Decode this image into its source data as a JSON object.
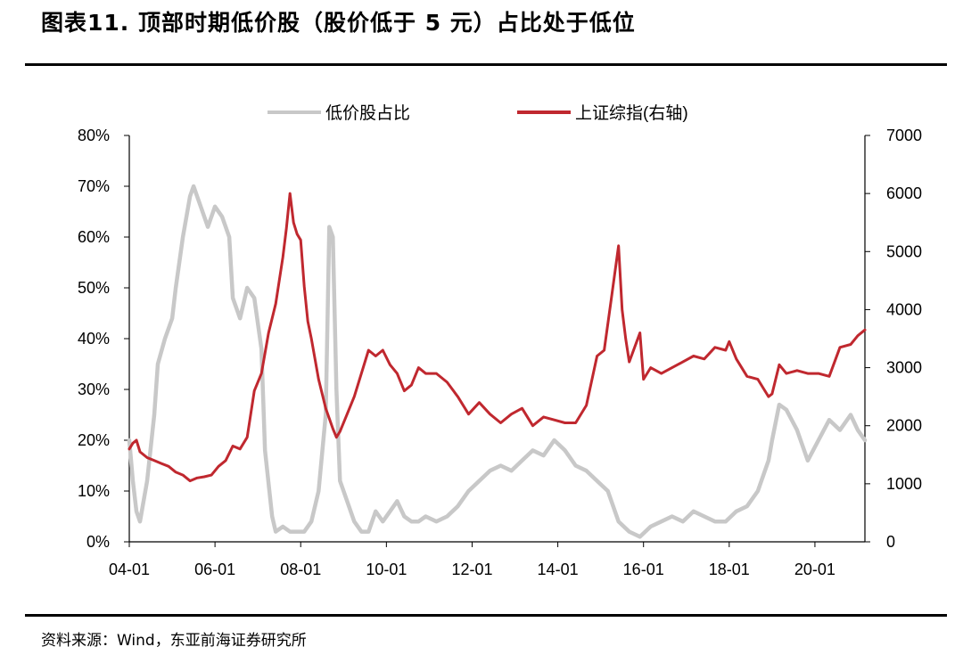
{
  "figure": {
    "title": "图表11. 顶部时期低价股（股价低于 5 元）占比处于低位",
    "source": "资料来源：Wind，东亚前海证券研究所"
  },
  "colors": {
    "low_price_share": "#c8c8c8",
    "sse_index": "#c0282f",
    "axis": "#000000"
  },
  "chart_data": {
    "type": "line",
    "title": "",
    "legend": {
      "position": "top",
      "entries": [
        "低价股占比",
        "上证综指(右轴)"
      ]
    },
    "grid": false,
    "x_axis": {
      "label": "",
      "range": [
        "2004-01",
        "2021-03"
      ],
      "tick_labels": [
        "04-01",
        "06-01",
        "08-01",
        "10-01",
        "12-01",
        "14-01",
        "16-01",
        "18-01",
        "20-01"
      ],
      "tick_values": [
        "2004-01",
        "2006-01",
        "2008-01",
        "2010-01",
        "2012-01",
        "2014-01",
        "2016-01",
        "2018-01",
        "2020-01"
      ]
    },
    "y_left": {
      "label": "",
      "range": [
        0,
        80
      ],
      "unit": "%",
      "tick_labels": [
        "0%",
        "10%",
        "20%",
        "30%",
        "40%",
        "50%",
        "60%",
        "70%",
        "80%"
      ]
    },
    "y_right": {
      "label": "",
      "range": [
        0,
        7000
      ],
      "tick_labels": [
        "0",
        "1000",
        "2000",
        "3000",
        "4000",
        "5000",
        "6000",
        "7000"
      ]
    },
    "series": [
      {
        "name": "低价股占比",
        "axis": "left",
        "unit": "%",
        "x": [
          "2004-01",
          "2004-02",
          "2004-03",
          "2004-04",
          "2004-06",
          "2004-08",
          "2004-09",
          "2004-11",
          "2005-01",
          "2005-02",
          "2005-04",
          "2005-06",
          "2005-07",
          "2005-09",
          "2005-11",
          "2006-01",
          "2006-03",
          "2006-05",
          "2006-06",
          "2006-08",
          "2006-10",
          "2006-12",
          "2007-02",
          "2007-03",
          "2007-05",
          "2007-06",
          "2007-08",
          "2007-10",
          "2007-12",
          "2008-02",
          "2008-04",
          "2008-06",
          "2008-08",
          "2008-09",
          "2008-10",
          "2008-11",
          "2008-12",
          "2009-02",
          "2009-04",
          "2009-06",
          "2009-08",
          "2009-10",
          "2009-12",
          "2010-02",
          "2010-04",
          "2010-06",
          "2010-08",
          "2010-10",
          "2010-12",
          "2011-03",
          "2011-06",
          "2011-09",
          "2011-12",
          "2012-03",
          "2012-06",
          "2012-09",
          "2012-12",
          "2013-03",
          "2013-06",
          "2013-09",
          "2013-12",
          "2014-03",
          "2014-06",
          "2014-09",
          "2014-12",
          "2015-03",
          "2015-06",
          "2015-09",
          "2015-12",
          "2016-03",
          "2016-06",
          "2016-09",
          "2016-12",
          "2017-03",
          "2017-06",
          "2017-09",
          "2017-12",
          "2018-03",
          "2018-06",
          "2018-09",
          "2018-12",
          "2019-01",
          "2019-03",
          "2019-05",
          "2019-08",
          "2019-11",
          "2020-02",
          "2020-05",
          "2020-08",
          "2020-11",
          "2021-01",
          "2021-03"
        ],
        "values": [
          20,
          12,
          6,
          4,
          12,
          25,
          35,
          40,
          44,
          50,
          60,
          68,
          70,
          66,
          62,
          66,
          64,
          60,
          48,
          44,
          50,
          48,
          38,
          18,
          5,
          2,
          3,
          2,
          2,
          2,
          4,
          10,
          25,
          62,
          60,
          30,
          12,
          8,
          4,
          2,
          2,
          6,
          4,
          6,
          8,
          5,
          4,
          4,
          5,
          4,
          5,
          7,
          10,
          12,
          14,
          15,
          14,
          16,
          18,
          17,
          20,
          18,
          15,
          14,
          12,
          10,
          4,
          2,
          1,
          3,
          4,
          5,
          4,
          6,
          5,
          4,
          4,
          6,
          7,
          10,
          16,
          20,
          27,
          26,
          22,
          16,
          20,
          24,
          22,
          25,
          22,
          20
        ]
      },
      {
        "name": "上证综指(右轴)",
        "axis": "right",
        "x": [
          "2004-01",
          "2004-02",
          "2004-03",
          "2004-04",
          "2004-06",
          "2004-08",
          "2004-10",
          "2004-12",
          "2005-02",
          "2005-04",
          "2005-06",
          "2005-08",
          "2005-10",
          "2005-12",
          "2006-02",
          "2006-04",
          "2006-06",
          "2006-08",
          "2006-10",
          "2006-12",
          "2007-02",
          "2007-04",
          "2007-06",
          "2007-08",
          "2007-09",
          "2007-10",
          "2007-11",
          "2007-12",
          "2008-01",
          "2008-02",
          "2008-03",
          "2008-04",
          "2008-06",
          "2008-08",
          "2008-10",
          "2008-11",
          "2008-12",
          "2009-02",
          "2009-04",
          "2009-06",
          "2009-08",
          "2009-10",
          "2009-12",
          "2010-02",
          "2010-04",
          "2010-06",
          "2010-08",
          "2010-10",
          "2010-12",
          "2011-03",
          "2011-06",
          "2011-09",
          "2011-12",
          "2012-03",
          "2012-06",
          "2012-09",
          "2012-12",
          "2013-03",
          "2013-06",
          "2013-09",
          "2013-12",
          "2014-03",
          "2014-06",
          "2014-09",
          "2014-12",
          "2015-02",
          "2015-04",
          "2015-06",
          "2015-07",
          "2015-08",
          "2015-09",
          "2015-12",
          "2016-01",
          "2016-03",
          "2016-06",
          "2016-09",
          "2016-12",
          "2017-03",
          "2017-06",
          "2017-09",
          "2017-12",
          "2018-01",
          "2018-03",
          "2018-06",
          "2018-09",
          "2018-12",
          "2019-01",
          "2019-03",
          "2019-05",
          "2019-08",
          "2019-11",
          "2020-02",
          "2020-05",
          "2020-08",
          "2020-11",
          "2021-01",
          "2021-03"
        ],
        "values": [
          1600,
          1700,
          1750,
          1550,
          1450,
          1400,
          1350,
          1300,
          1200,
          1150,
          1050,
          1100,
          1120,
          1150,
          1300,
          1400,
          1650,
          1600,
          1800,
          2600,
          2900,
          3600,
          4100,
          4900,
          5400,
          6000,
          5500,
          5300,
          5200,
          4400,
          3800,
          3500,
          2800,
          2300,
          1950,
          1800,
          1900,
          2200,
          2500,
          2900,
          3300,
          3200,
          3300,
          3050,
          2900,
          2600,
          2700,
          3000,
          2900,
          2900,
          2750,
          2500,
          2200,
          2400,
          2200,
          2050,
          2200,
          2300,
          2000,
          2150,
          2100,
          2050,
          2050,
          2350,
          3200,
          3300,
          4200,
          5100,
          4000,
          3500,
          3100,
          3600,
          2800,
          3000,
          2900,
          3000,
          3100,
          3200,
          3150,
          3350,
          3300,
          3450,
          3150,
          2850,
          2800,
          2500,
          2550,
          3050,
          2900,
          2950,
          2900,
          2900,
          2850,
          3350,
          3400,
          3550,
          3650
        ]
      }
    ]
  }
}
